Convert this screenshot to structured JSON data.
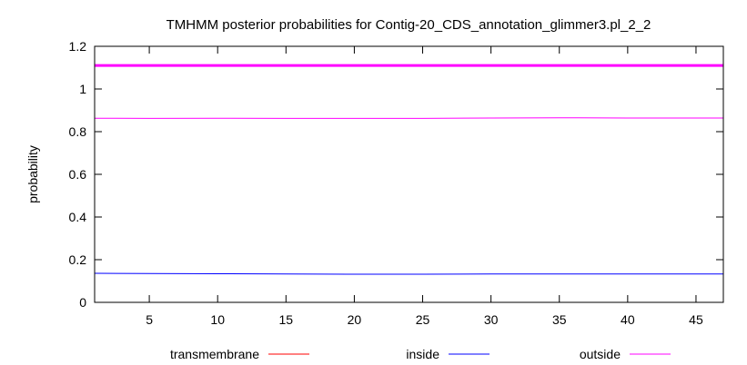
{
  "chart_data": {
    "type": "line",
    "title": "TMHMM posterior probabilities for Contig-20_CDS_annotation_glimmer3.pl_2_2",
    "xlabel": "",
    "ylabel": "probability",
    "xlim": [
      1,
      47
    ],
    "ylim": [
      0,
      1.2
    ],
    "x_ticks": [
      5,
      10,
      15,
      20,
      25,
      30,
      35,
      40,
      45
    ],
    "y_ticks": [
      0,
      0.2,
      0.4,
      0.6,
      0.8,
      1,
      1.2
    ],
    "x_tick_labels": [
      "5",
      "10",
      "15",
      "20",
      "25",
      "30",
      "35",
      "40",
      "45"
    ],
    "y_tick_labels": [
      "0",
      "0.2",
      "0.4",
      "0.6",
      "0.8",
      "1",
      "1.2"
    ],
    "grid": false,
    "legend_position": "bottom",
    "series": [
      {
        "name": "transmembrane",
        "color": "#ff0000",
        "x": [
          1,
          47
        ],
        "y": [
          0,
          0
        ]
      },
      {
        "name": "inside",
        "color": "#0000ff",
        "x": [
          1,
          5,
          10,
          15,
          20,
          25,
          30,
          35,
          40,
          45,
          47
        ],
        "y": [
          0.136,
          0.135,
          0.134,
          0.133,
          0.132,
          0.132,
          0.133,
          0.133,
          0.133,
          0.133,
          0.133
        ]
      },
      {
        "name": "outside",
        "color": "#ff00ff",
        "x": [
          1,
          5,
          10,
          15,
          20,
          25,
          30,
          35,
          40,
          45,
          47
        ],
        "y": [
          0.863,
          0.862,
          0.863,
          0.862,
          0.862,
          0.862,
          0.864,
          0.865,
          0.864,
          0.864,
          0.864
        ]
      }
    ],
    "annotations": [
      {
        "kind": "horizontal-line",
        "y": 1.11,
        "color": "#ff00ff"
      }
    ]
  }
}
